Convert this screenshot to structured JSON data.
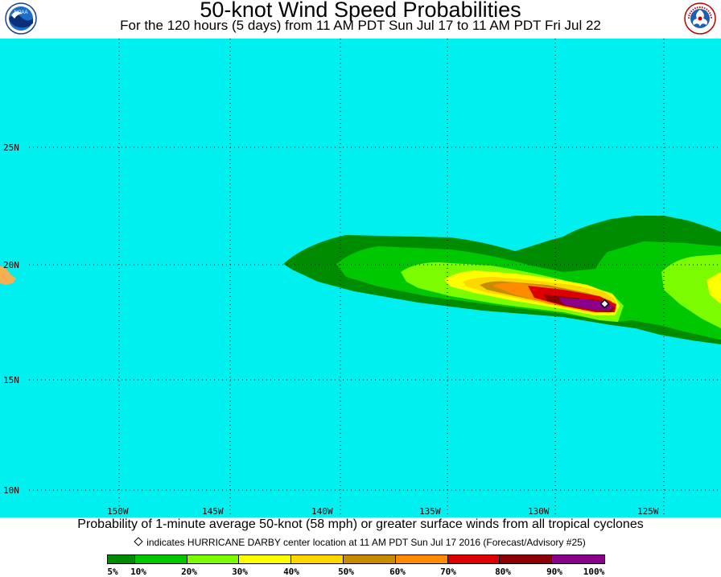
{
  "header": {
    "title": "50-knot Wind Speed Probabilities",
    "subtitle": "For the 120 hours (5 days) from 11 AM PDT Sun Jul 17 to 11 AM PDT Fri Jul 22",
    "left_logo": "NOAA",
    "right_logo": "National Weather Service"
  },
  "map": {
    "ocean_color": "#00f0f0",
    "land_color": "#f5b052",
    "grid_style": "dotted",
    "lat_labels": [
      "25N",
      "20N",
      "15N",
      "10N"
    ],
    "lon_labels": [
      "150W",
      "145W",
      "140W",
      "135W",
      "130W",
      "125W"
    ],
    "storm_marker": "hurricane-center-diamond"
  },
  "footer": {
    "line1": "Probability of 1-minute average 50-knot (58 mph) or greater surface winds from all tropical cyclones",
    "line2": "indicates HURRICANE DARBY center location at 11 AM PDT Sun Jul 17 2016 (Forecast/Advisory #25)"
  },
  "legend": {
    "labels": [
      "5%",
      "10%",
      "20%",
      "30%",
      "40%",
      "50%",
      "60%",
      "70%",
      "80%",
      "90%",
      "100%"
    ],
    "colors": [
      "#008c00",
      "#00c800",
      "#7cfc00",
      "#ffff00",
      "#ffd700",
      "#c88c00",
      "#ff8c00",
      "#dc0000",
      "#8b0000",
      "#8b008b"
    ]
  }
}
